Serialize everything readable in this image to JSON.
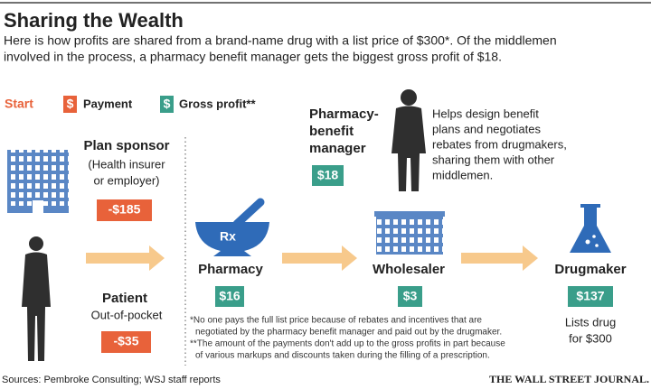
{
  "header": {
    "title": "Sharing the Wealth",
    "subtitle": [
      "Here is how profits are shared from a brand-name drug with a list price of $300*. Of the middlemen",
      "involved in the process, a pharmacy benefit manager gets the biggest gross profit of $18."
    ]
  },
  "legend": {
    "start": "Start",
    "payment": {
      "icon": "$",
      "label": "Payment"
    },
    "gross_profit": {
      "icon": "$",
      "label": "Gross profit**"
    }
  },
  "nodes": {
    "plan_sponsor": {
      "label": "Plan sponsor",
      "description": [
        "(Health insurer",
        "or employer)"
      ],
      "amount": "-$185"
    },
    "patient": {
      "label": "Patient",
      "description": "Out-of-pocket",
      "amount": "-$35"
    },
    "pharmacy": {
      "label": "Pharmacy",
      "icon_text": "Rx",
      "amount": "$16"
    },
    "wholesaler": {
      "label": "Wholesaler",
      "amount": "$3"
    },
    "drugmaker": {
      "label": "Drugmaker",
      "amount": "$137",
      "note": [
        "Lists drug",
        "for $300"
      ]
    },
    "pbm": {
      "label": [
        "Pharmacy-",
        "benefit",
        "manager"
      ],
      "amount": "$18",
      "description": [
        "Helps design benefit",
        "plans and negotiates",
        "rebates from drugmakers,",
        "sharing them with other",
        "middlemen."
      ]
    }
  },
  "footnotes": [
    "*No one pays the full list price because of rebates and incentives that are",
    "negotiated by the pharmacy benefit manager and paid out by the drugmaker.",
    "**The amount of the payments don't add up to the gross profits in part because",
    "of various markups and discounts taken during the filling of a prescription."
  ],
  "footer": {
    "source": "Sources: Pembroke Consulting; WSJ staff reports",
    "brand": "THE WALL STREET JOURNAL."
  }
}
